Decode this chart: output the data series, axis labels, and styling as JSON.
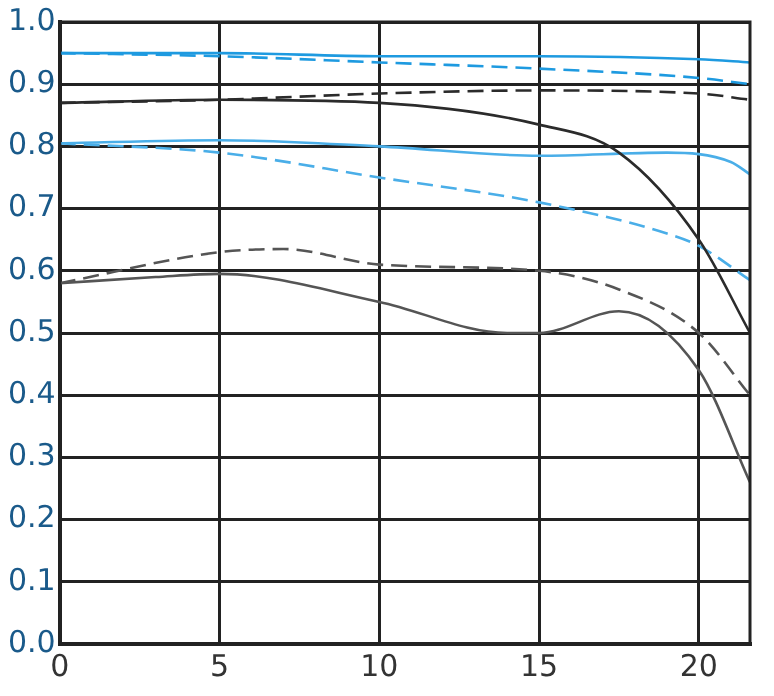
{
  "chart_data": {
    "type": "line",
    "xlim": [
      0,
      21.6
    ],
    "xticks": [
      0,
      5,
      10,
      15,
      20
    ],
    "ylim": [
      0,
      1
    ],
    "yticks": [
      {
        "value": 0,
        "label": "0.0"
      },
      0.1,
      0.2,
      0.3,
      0.4,
      0.5,
      0.6,
      0.7,
      0.8,
      0.9,
      {
        "value": 1,
        "label": "1.0"
      }
    ],
    "grid": true,
    "legend": false,
    "marker": "none",
    "series": [
      {
        "color": "#1e9ae0",
        "line_style": "solid",
        "x": [
          0,
          5,
          10,
          15,
          20,
          21.6
        ],
        "values": [
          0.95,
          0.95,
          0.945,
          0.945,
          0.94,
          0.935
        ]
      },
      {
        "color": "#1e9ae0",
        "line_style": "dashed",
        "x": [
          0,
          5,
          10,
          15,
          20,
          21.6
        ],
        "values": [
          0.95,
          0.945,
          0.935,
          0.925,
          0.91,
          0.9
        ]
      },
      {
        "color": "#2b2b2b",
        "line_style": "dashed",
        "x": [
          0,
          5,
          10,
          15,
          20,
          21.6
        ],
        "values": [
          0.87,
          0.875,
          0.885,
          0.89,
          0.885,
          0.875
        ]
      },
      {
        "color": "#2b2b2b",
        "line_style": "solid",
        "x": [
          0,
          5,
          10,
          15,
          17.5,
          20,
          21.6
        ],
        "values": [
          0.87,
          0.875,
          0.87,
          0.835,
          0.79,
          0.65,
          0.5
        ]
      },
      {
        "color": "#4aaee8",
        "line_style": "solid",
        "x": [
          0,
          5,
          10,
          15,
          19,
          21,
          21.6
        ],
        "values": [
          0.805,
          0.81,
          0.8,
          0.785,
          0.79,
          0.775,
          0.755
        ]
      },
      {
        "color": "#4aaee8",
        "line_style": "dashed",
        "x": [
          0,
          5,
          10,
          15,
          19,
          20,
          21.6
        ],
        "values": [
          0.805,
          0.79,
          0.75,
          0.71,
          0.66,
          0.64,
          0.585
        ]
      },
      {
        "color": "#555555",
        "line_style": "dashed",
        "x": [
          0,
          5,
          7,
          10,
          15,
          17.5,
          20,
          21.6
        ],
        "values": [
          0.58,
          0.63,
          0.635,
          0.61,
          0.6,
          0.57,
          0.5,
          0.4
        ]
      },
      {
        "color": "#555555",
        "line_style": "solid",
        "x": [
          0,
          3,
          5,
          10,
          14,
          15,
          17.5,
          20,
          21.6
        ],
        "values": [
          0.58,
          0.59,
          0.595,
          0.55,
          0.5,
          0.5,
          0.535,
          0.44,
          0.26
        ]
      }
    ]
  }
}
